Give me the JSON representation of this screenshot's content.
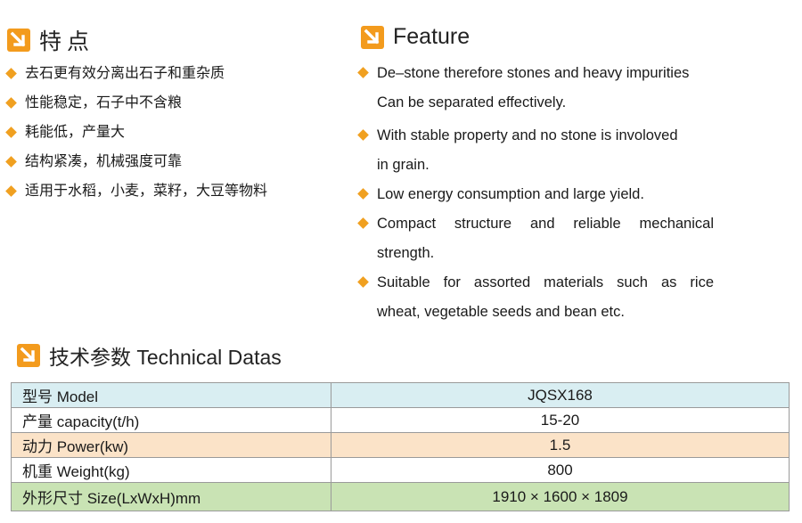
{
  "features_cn": {
    "heading": "特点",
    "items": [
      "去石更有效分离出石子和重杂质",
      "性能稳定，石子中不含粮",
      "耗能低，产量大",
      "结构紧凑，机械强度可靠",
      "适用于水稻，小麦，菜籽，大豆等物料"
    ]
  },
  "features_en": {
    "heading": "Feature",
    "items": [
      {
        "line1": "De–stone therefore stones and heavy impurities",
        "line2": "Can be separated effectively."
      },
      {
        "line1": "With stable property and no stone is involoved",
        "line2": "in grain."
      },
      {
        "line1": "Low energy consumption and large yield.",
        "line2": ""
      },
      {
        "line1": "Compact structure and reliable mechanical",
        "line2": "strength."
      },
      {
        "line1": "Suitable for assorted materials such as rice",
        "line2": "wheat, vegetable seeds and bean etc."
      }
    ]
  },
  "technical": {
    "heading": "技术参数 Technical Datas",
    "rows": [
      {
        "label": "型号 Model",
        "value": "JQSX168"
      },
      {
        "label": "产量 capacity(t/h)",
        "value": "15-20"
      },
      {
        "label": "动力 Power(kw)",
        "value": "1.5"
      },
      {
        "label": "机重 Weight(kg)",
        "value": "800"
      },
      {
        "label": "外形尺寸 Size(LxWxH)mm",
        "value": "1910 × 1600 × 1809"
      }
    ]
  },
  "colors": {
    "icon": "#f39b1d",
    "bullet": "#f0a020",
    "row_blue": "#d9eef2",
    "row_peach": "#fbe3c8",
    "row_green": "#c9e3b4"
  },
  "icons": {
    "heading": "arrow-down-right-icon",
    "bullet": "diamond-bullet-icon"
  }
}
